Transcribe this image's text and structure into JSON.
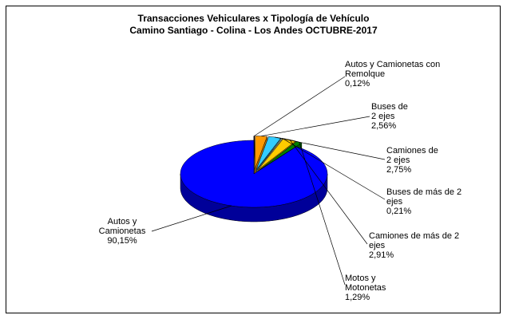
{
  "chart_data": {
    "type": "pie3d",
    "title": "Transacciones Vehiculares x Tipología de Vehículo",
    "subtitle": "Camino Santiago - Colina - Los Andes OCTUBRE-2017",
    "categories": [
      "Autos y Camionetas con Remolque",
      "Buses de 2 ejes",
      "Camiones de 2 ejes",
      "Buses de más de 2 ejes",
      "Camiones de más de 2 ejes",
      "Motos y Motonetas",
      "Autos y Camionetas"
    ],
    "values": [
      0.12,
      2.56,
      2.75,
      0.21,
      2.91,
      1.29,
      90.15
    ],
    "value_labels": [
      "0,12%",
      "2,56%",
      "2,75%",
      "0,21%",
      "2,91%",
      "1,29%",
      "90,15%"
    ],
    "colors": [
      "#993300",
      "#ff9900",
      "#33ccff",
      "#ffffcc",
      "#ffcc00",
      "#008000",
      "#0000ff"
    ]
  }
}
